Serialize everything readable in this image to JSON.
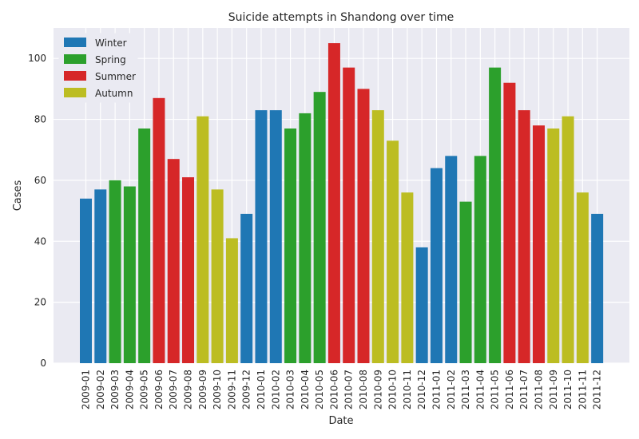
{
  "chart_data": {
    "type": "bar",
    "title": "Suicide attempts in Shandong over time",
    "xlabel": "Date",
    "ylabel": "Cases",
    "ylim": [
      0,
      110
    ],
    "yticks": [
      0,
      20,
      40,
      60,
      80,
      100
    ],
    "grid": true,
    "legend_position": "top-left",
    "legend": [
      {
        "name": "Winter",
        "color": "#1f77b4"
      },
      {
        "name": "Spring",
        "color": "#2ca02c"
      },
      {
        "name": "Summer",
        "color": "#d62728"
      },
      {
        "name": "Autumn",
        "color": "#bcbd22"
      }
    ],
    "categories": [
      "2009-01",
      "2009-02",
      "2009-03",
      "2009-04",
      "2009-05",
      "2009-06",
      "2009-07",
      "2009-08",
      "2009-09",
      "2009-10",
      "2009-11",
      "2009-12",
      "2010-01",
      "2010-02",
      "2010-03",
      "2010-04",
      "2010-05",
      "2010-06",
      "2010-07",
      "2010-08",
      "2010-09",
      "2010-10",
      "2010-11",
      "2010-12",
      "2011-01",
      "2011-02",
      "2011-03",
      "2011-04",
      "2011-05",
      "2011-06",
      "2011-07",
      "2011-08",
      "2011-09",
      "2011-10",
      "2011-11",
      "2011-12"
    ],
    "values": [
      54,
      57,
      60,
      58,
      77,
      87,
      67,
      61,
      81,
      57,
      41,
      49,
      83,
      83,
      77,
      82,
      89,
      105,
      97,
      90,
      83,
      73,
      56,
      38,
      64,
      68,
      53,
      68,
      97,
      92,
      83,
      78,
      77,
      81,
      56,
      49
    ],
    "season": [
      "Winter",
      "Winter",
      "Spring",
      "Spring",
      "Spring",
      "Summer",
      "Summer",
      "Summer",
      "Autumn",
      "Autumn",
      "Autumn",
      "Winter",
      "Winter",
      "Winter",
      "Spring",
      "Spring",
      "Spring",
      "Summer",
      "Summer",
      "Summer",
      "Autumn",
      "Autumn",
      "Autumn",
      "Winter",
      "Winter",
      "Winter",
      "Spring",
      "Spring",
      "Spring",
      "Summer",
      "Summer",
      "Summer",
      "Autumn",
      "Autumn",
      "Autumn",
      "Winter"
    ]
  }
}
